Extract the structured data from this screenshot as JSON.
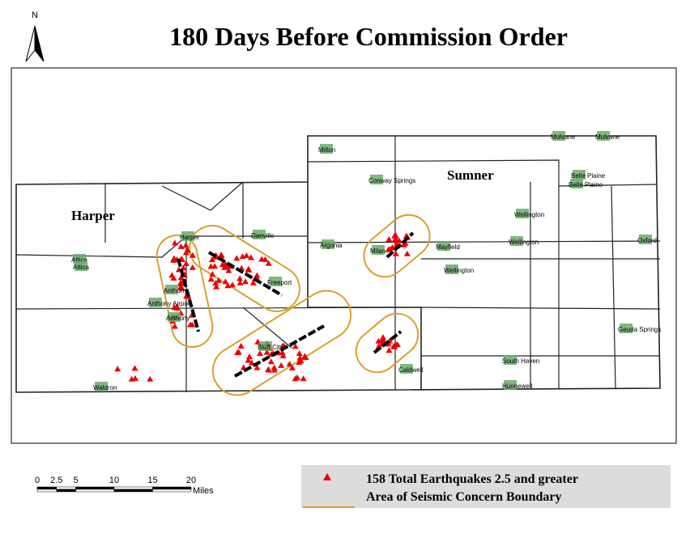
{
  "header": {
    "north": "N",
    "title": "180 Days Before Commission Order"
  },
  "map": {
    "regions": [
      "Harper",
      "Sumner"
    ],
    "towns": [
      "Milton",
      "Mulvane",
      "Mulvane",
      "Conway Springs",
      "Belle Plaine",
      "Belle Plaine",
      "Wellington",
      "Wellington",
      "Argonia",
      "Mayfield",
      "Milan",
      "Wellington",
      "Oxford",
      "Attica",
      "Attica",
      "Harper",
      "Danville",
      "Freeport",
      "Anthony",
      "Anthony Airport",
      "Anthony",
      "Bluff City",
      "Caldwell",
      "South Haven",
      "Hunnewell",
      "Waldron",
      "Geuda Springs"
    ]
  },
  "scale_bar": {
    "ticks": [
      0,
      2.5,
      5,
      10,
      15,
      20
    ],
    "unit": "Miles"
  },
  "legend": {
    "items": [
      "158 Total Earthquakes 2.5 and greater",
      "Area of Seismic Concern Boundary"
    ]
  }
}
